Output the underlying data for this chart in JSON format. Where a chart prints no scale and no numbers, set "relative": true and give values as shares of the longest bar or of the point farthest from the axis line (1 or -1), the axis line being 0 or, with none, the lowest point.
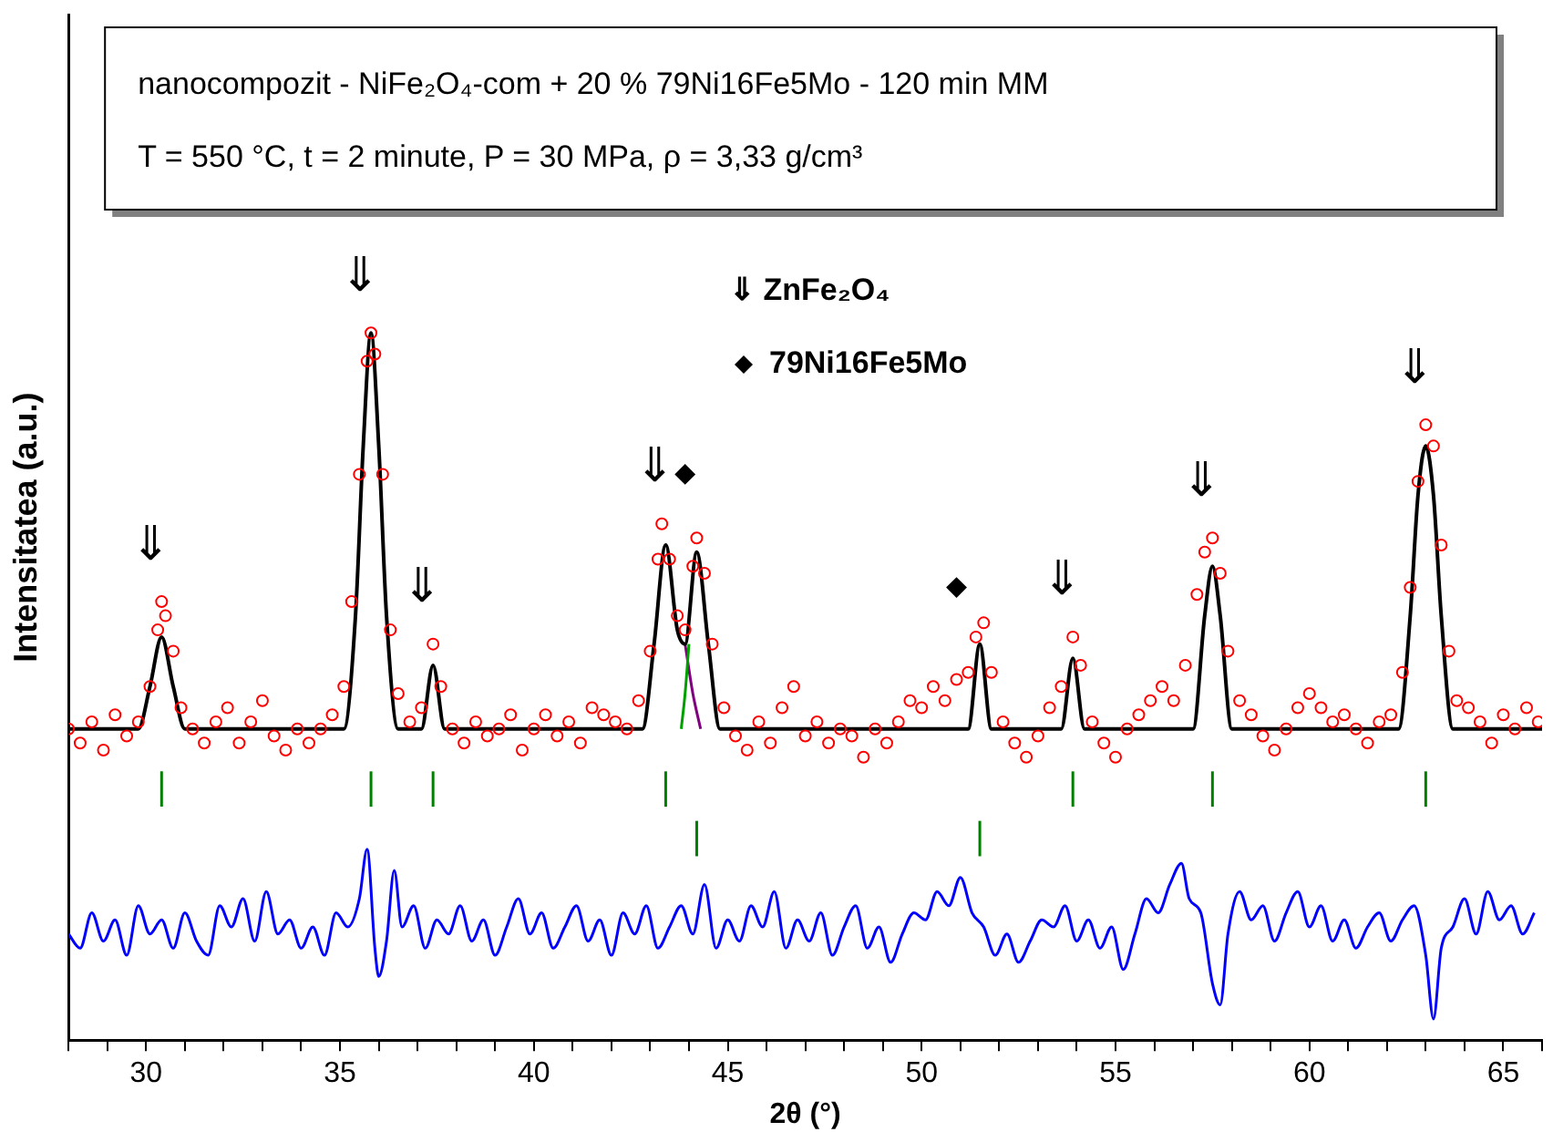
{
  "chart_data": {
    "type": "scatter",
    "title": "nanocompozit - NiFe₂O₄-com + 20 % 79Ni16Fe5Mo - 120 min MM",
    "subtitle": "T = 550 °C, t = 2 minute, P = 30 MPa, ρ = 3,33 g/cm³",
    "xlabel": "2θ (°)",
    "ylabel": "Intensitatea (a.u.)",
    "relative": true,
    "legend": "top",
    "grid": false,
    "xlim": [
      28,
      66
    ],
    "xticks": [
      {
        "value": 28,
        "label": null
      },
      {
        "value": 29,
        "label": null
      },
      30,
      {
        "value": 31,
        "label": null
      },
      {
        "value": 32,
        "label": null
      },
      {
        "value": 33,
        "label": null
      },
      {
        "value": 34,
        "label": null
      },
      35,
      {
        "value": 36,
        "label": null
      },
      {
        "value": 37,
        "label": null
      },
      {
        "value": 38,
        "label": null
      },
      {
        "value": 39,
        "label": null
      },
      40,
      {
        "value": 41,
        "label": null
      },
      {
        "value": 42,
        "label": null
      },
      {
        "value": 43,
        "label": null
      },
      {
        "value": 44,
        "label": null
      },
      45,
      {
        "value": 46,
        "label": null
      },
      {
        "value": 47,
        "label": null
      },
      {
        "value": 48,
        "label": null
      },
      {
        "value": 49,
        "label": null
      },
      50,
      {
        "value": 51,
        "label": null
      },
      {
        "value": 52,
        "label": null
      },
      {
        "value": 53,
        "label": null
      },
      {
        "value": 54,
        "label": null
      },
      55,
      {
        "value": 56,
        "label": null
      },
      {
        "value": 57,
        "label": null
      },
      {
        "value": 58,
        "label": null
      },
      {
        "value": 59,
        "label": null
      },
      60,
      {
        "value": 61,
        "label": null
      },
      {
        "value": 62,
        "label": null
      },
      {
        "value": 63,
        "label": null
      },
      {
        "value": 64,
        "label": null
      },
      65,
      {
        "value": 66,
        "label": null
      }
    ],
    "annotations": [
      "⇓ ZnFe₂O₄",
      "⇓",
      "⇓",
      "⇓",
      "⇓",
      "⇓",
      "⇓",
      "⇓"
    ],
    "series": [
      {
        "type": "scatter",
        "marker": "circle",
        "color": "#ff0000",
        "x": [
          28.0,
          28.3,
          28.6,
          28.9,
          29.2,
          29.5,
          29.8,
          30.1,
          30.3,
          30.4,
          30.5,
          30.7,
          30.9,
          31.2,
          31.5,
          31.8,
          32.1,
          32.4,
          32.7,
          33.0,
          33.3,
          33.6,
          33.9,
          34.2,
          34.5,
          34.8,
          35.1,
          35.3,
          35.5,
          35.7,
          35.8,
          35.9,
          36.1,
          36.3,
          36.5,
          36.8,
          37.1,
          37.4,
          37.6,
          37.9,
          38.2,
          38.5,
          38.8,
          39.1,
          39.4,
          39.7,
          40.0,
          40.3,
          40.6,
          40.9,
          41.2,
          41.5,
          41.8,
          42.1,
          42.4,
          42.7,
          43.0,
          43.2,
          43.3,
          43.5,
          43.7,
          43.9,
          44.1,
          44.2,
          44.4,
          44.6,
          44.9,
          45.2,
          45.5,
          45.8,
          46.1,
          46.4,
          46.7,
          47.0,
          47.3,
          47.6,
          47.9,
          48.2,
          48.5,
          48.8,
          49.1,
          49.4,
          49.7,
          50.0,
          50.3,
          50.6,
          50.9,
          51.2,
          51.4,
          51.6,
          51.8,
          52.1,
          52.4,
          52.7,
          53.0,
          53.3,
          53.6,
          53.9,
          54.1,
          54.4,
          54.7,
          55.0,
          55.3,
          55.6,
          55.9,
          56.2,
          56.5,
          56.8,
          57.1,
          57.3,
          57.5,
          57.7,
          57.9,
          58.2,
          58.5,
          58.8,
          59.1,
          59.4,
          59.7,
          60.0,
          60.3,
          60.6,
          60.9,
          61.2,
          61.5,
          61.8,
          62.1,
          62.4,
          62.6,
          62.8,
          63.0,
          63.2,
          63.4,
          63.6,
          63.8,
          64.1,
          64.4,
          64.7,
          65.0,
          65.3,
          65.6,
          65.9
        ],
        "values": [
          0.44,
          0.42,
          0.45,
          0.41,
          0.46,
          0.43,
          0.45,
          0.5,
          0.58,
          0.62,
          0.6,
          0.55,
          0.47,
          0.44,
          0.42,
          0.45,
          0.47,
          0.42,
          0.45,
          0.48,
          0.43,
          0.41,
          0.44,
          0.42,
          0.44,
          0.46,
          0.5,
          0.62,
          0.8,
          0.96,
          1.0,
          0.97,
          0.8,
          0.58,
          0.49,
          0.45,
          0.47,
          0.56,
          0.5,
          0.44,
          0.42,
          0.45,
          0.43,
          0.44,
          0.46,
          0.41,
          0.44,
          0.46,
          0.43,
          0.45,
          0.42,
          0.47,
          0.46,
          0.45,
          0.44,
          0.48,
          0.55,
          0.68,
          0.73,
          0.68,
          0.6,
          0.58,
          0.67,
          0.71,
          0.66,
          0.56,
          0.47,
          0.43,
          0.41,
          0.45,
          0.42,
          0.47,
          0.5,
          0.43,
          0.45,
          0.42,
          0.44,
          0.43,
          0.4,
          0.44,
          0.42,
          0.45,
          0.48,
          0.47,
          0.5,
          0.48,
          0.51,
          0.52,
          0.57,
          0.59,
          0.52,
          0.45,
          0.42,
          0.4,
          0.43,
          0.47,
          0.5,
          0.57,
          0.53,
          0.45,
          0.42,
          0.4,
          0.44,
          0.46,
          0.48,
          0.5,
          0.48,
          0.53,
          0.63,
          0.69,
          0.71,
          0.66,
          0.55,
          0.48,
          0.46,
          0.43,
          0.41,
          0.44,
          0.47,
          0.49,
          0.47,
          0.45,
          0.46,
          0.44,
          0.42,
          0.45,
          0.46,
          0.52,
          0.64,
          0.79,
          0.87,
          0.84,
          0.7,
          0.55,
          0.48,
          0.47,
          0.45,
          0.42,
          0.46,
          0.44,
          0.47,
          0.45
        ]
      },
      {
        "type": "line",
        "color": "#000000",
        "x": [
          28,
          29.8,
          30.1,
          30.4,
          30.7,
          31.0,
          35.1,
          35.4,
          35.6,
          35.8,
          36.0,
          36.2,
          36.5,
          37.1,
          37.4,
          37.7,
          42.8,
          43.1,
          43.4,
          43.7,
          43.9,
          44.2,
          44.5,
          44.8,
          51.2,
          51.5,
          51.8,
          53.6,
          53.9,
          54.2,
          57.0,
          57.3,
          57.5,
          57.7,
          58.0,
          62.3,
          62.6,
          62.8,
          63.0,
          63.2,
          63.4,
          63.7,
          66
        ],
        "values": [
          0.44,
          0.44,
          0.5,
          0.57,
          0.5,
          0.44,
          0.44,
          0.6,
          0.84,
          1.0,
          0.84,
          0.6,
          0.44,
          0.44,
          0.53,
          0.44,
          0.44,
          0.56,
          0.7,
          0.58,
          0.56,
          0.69,
          0.56,
          0.44,
          0.44,
          0.56,
          0.44,
          0.44,
          0.54,
          0.44,
          0.44,
          0.6,
          0.67,
          0.6,
          0.44,
          0.44,
          0.6,
          0.77,
          0.84,
          0.77,
          0.6,
          0.44,
          0.44
        ]
      },
      {
        "type": "line",
        "color": "#00a000",
        "x": [
          43.8,
          43.9,
          44.0
        ],
        "values": [
          0.44,
          0.49,
          0.56
        ]
      },
      {
        "type": "line",
        "color": "#800080",
        "x": [
          43.9,
          44.1,
          44.3
        ],
        "values": [
          0.56,
          0.49,
          0.44
        ]
      },
      {
        "type": "line",
        "color": "#008000",
        "x": [
          30.4,
          30.4
        ],
        "values": [
          0.38,
          0.33
        ]
      },
      {
        "type": "line",
        "color": "#008000",
        "x": [
          35.8,
          35.8
        ],
        "values": [
          0.38,
          0.33
        ]
      },
      {
        "type": "line",
        "color": "#008000",
        "x": [
          37.4,
          37.4
        ],
        "values": [
          0.38,
          0.33
        ]
      },
      {
        "type": "line",
        "color": "#008000",
        "x": [
          43.4,
          43.4
        ],
        "values": [
          0.38,
          0.33
        ]
      },
      {
        "type": "line",
        "color": "#008000",
        "x": [
          53.9,
          53.9
        ],
        "values": [
          0.38,
          0.33
        ]
      },
      {
        "type": "line",
        "color": "#008000",
        "x": [
          57.5,
          57.5
        ],
        "values": [
          0.38,
          0.33
        ]
      },
      {
        "type": "line",
        "color": "#008000",
        "x": [
          63.0,
          63.0
        ],
        "values": [
          0.38,
          0.33
        ]
      },
      {
        "type": "line",
        "color": "#008000",
        "x": [
          44.2,
          44.2
        ],
        "values": [
          0.31,
          0.26
        ]
      },
      {
        "type": "line",
        "color": "#008000",
        "x": [
          51.5,
          51.5
        ],
        "values": [
          0.31,
          0.26
        ]
      },
      {
        "type": "line",
        "color": "#0000ff",
        "x": [
          28.0,
          28.3,
          28.6,
          28.9,
          29.2,
          29.5,
          29.8,
          30.1,
          30.4,
          30.7,
          31.0,
          31.3,
          31.6,
          31.9,
          32.2,
          32.5,
          32.8,
          33.1,
          33.4,
          33.7,
          34.0,
          34.3,
          34.6,
          34.9,
          35.2,
          35.5,
          35.7,
          35.9,
          36.0,
          36.2,
          36.4,
          36.6,
          36.9,
          37.2,
          37.5,
          37.8,
          38.1,
          38.4,
          38.7,
          39.0,
          39.3,
          39.6,
          39.9,
          40.2,
          40.5,
          40.8,
          41.1,
          41.4,
          41.7,
          42.0,
          42.3,
          42.6,
          42.9,
          43.2,
          43.5,
          43.8,
          44.1,
          44.4,
          44.7,
          45.0,
          45.3,
          45.6,
          45.9,
          46.2,
          46.5,
          46.8,
          47.1,
          47.4,
          47.7,
          48.0,
          48.3,
          48.6,
          48.9,
          49.2,
          49.5,
          49.8,
          50.1,
          50.4,
          50.7,
          51.0,
          51.3,
          51.6,
          51.9,
          52.2,
          52.5,
          52.8,
          53.1,
          53.4,
          53.7,
          54.0,
          54.3,
          54.6,
          54.9,
          55.2,
          55.5,
          55.8,
          56.1,
          56.4,
          56.7,
          56.9,
          57.2,
          57.5,
          57.7,
          57.9,
          58.2,
          58.5,
          58.8,
          59.1,
          59.4,
          59.7,
          60.0,
          60.3,
          60.6,
          60.9,
          61.2,
          61.5,
          61.8,
          62.1,
          62.4,
          62.7,
          63.0,
          63.2,
          63.4,
          63.7,
          64.0,
          64.3,
          64.6,
          64.9,
          65.2,
          65.5,
          65.8
        ],
        "values": [
          0.15,
          0.13,
          0.18,
          0.14,
          0.17,
          0.12,
          0.19,
          0.15,
          0.17,
          0.13,
          0.18,
          0.14,
          0.12,
          0.19,
          0.16,
          0.2,
          0.14,
          0.21,
          0.15,
          0.17,
          0.13,
          0.16,
          0.12,
          0.18,
          0.16,
          0.2,
          0.27,
          0.13,
          0.09,
          0.14,
          0.24,
          0.16,
          0.19,
          0.13,
          0.17,
          0.15,
          0.19,
          0.14,
          0.17,
          0.12,
          0.16,
          0.2,
          0.15,
          0.18,
          0.13,
          0.16,
          0.19,
          0.14,
          0.17,
          0.12,
          0.18,
          0.15,
          0.19,
          0.13,
          0.16,
          0.19,
          0.15,
          0.22,
          0.13,
          0.17,
          0.14,
          0.19,
          0.16,
          0.21,
          0.13,
          0.17,
          0.14,
          0.18,
          0.12,
          0.16,
          0.19,
          0.13,
          0.16,
          0.11,
          0.15,
          0.18,
          0.17,
          0.21,
          0.19,
          0.23,
          0.18,
          0.16,
          0.12,
          0.15,
          0.11,
          0.14,
          0.17,
          0.16,
          0.19,
          0.14,
          0.17,
          0.13,
          0.16,
          0.1,
          0.15,
          0.2,
          0.18,
          0.22,
          0.25,
          0.2,
          0.18,
          0.08,
          0.05,
          0.15,
          0.21,
          0.17,
          0.19,
          0.14,
          0.18,
          0.21,
          0.16,
          0.19,
          0.14,
          0.17,
          0.13,
          0.16,
          0.18,
          0.14,
          0.17,
          0.19,
          0.12,
          0.03,
          0.13,
          0.16,
          0.2,
          0.15,
          0.21,
          0.17,
          0.19,
          0.15,
          0.18
        ]
      },
      {
        "type": "scatter",
        "marker": "diamond",
        "name": "79Ni16Fe5Mo",
        "color": "#000000",
        "x": [
          43.9,
          50.9
        ],
        "values": [
          0.8,
          0.64
        ]
      }
    ]
  }
}
